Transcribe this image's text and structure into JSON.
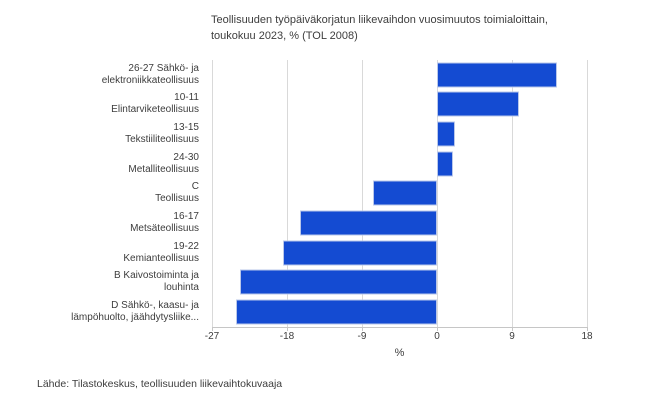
{
  "title": {
    "line1": "Teollisuuden työpäiväkorjatun liikevaihdon vuosimuutos toimialoittain,",
    "line2": "toukokuu 2023, % (TOL 2008)"
  },
  "source": "Lähde: Tilastokeskus, teollisuuden liikevaihtokuvaaja",
  "colors": {
    "bar": "#144bd2",
    "bar_border": "#b9c7ea",
    "grid": "#d9d9d9",
    "axis": "#c6c6c6",
    "text": "#3d3d3d"
  },
  "chart_data": {
    "type": "bar",
    "orientation": "horizontal",
    "title": "Teollisuuden työpäiväkorjatun liikevaihdon vuosimuutos toimialoittain, toukokuu 2023, % (TOL 2008)",
    "xlabel": "%",
    "xlim": [
      -27,
      18
    ],
    "xticks": [
      -27,
      -18,
      -9,
      0,
      9,
      18
    ],
    "grid": true,
    "legend": "none",
    "categories": [
      {
        "label_lines": [
          "26-27 Sähkö- ja",
          "elektroniikkateollisuus"
        ],
        "value": 14.4
      },
      {
        "label_lines": [
          "10-11",
          "Elintarviketeollisuus"
        ],
        "value": 9.8
      },
      {
        "label_lines": [
          "13-15",
          "Tekstiiliteollisuus"
        ],
        "value": 2.2
      },
      {
        "label_lines": [
          "24-30",
          "Metalliteollisuus"
        ],
        "value": 1.9
      },
      {
        "label_lines": [
          "C",
          "Teollisuus"
        ],
        "value": -7.7
      },
      {
        "label_lines": [
          "16-17",
          "Metsäteollisuus"
        ],
        "value": -16.4
      },
      {
        "label_lines": [
          "19-22",
          "Kemianteollisuus"
        ],
        "value": -18.5
      },
      {
        "label_lines": [
          "B Kaivostoiminta ja",
          "louhinta"
        ],
        "value": -23.7
      },
      {
        "label_lines": [
          "D Sähkö-, kaasu- ja",
          "lämpöhuolto, jäähdytysliike..."
        ],
        "value": -24.1
      }
    ]
  }
}
